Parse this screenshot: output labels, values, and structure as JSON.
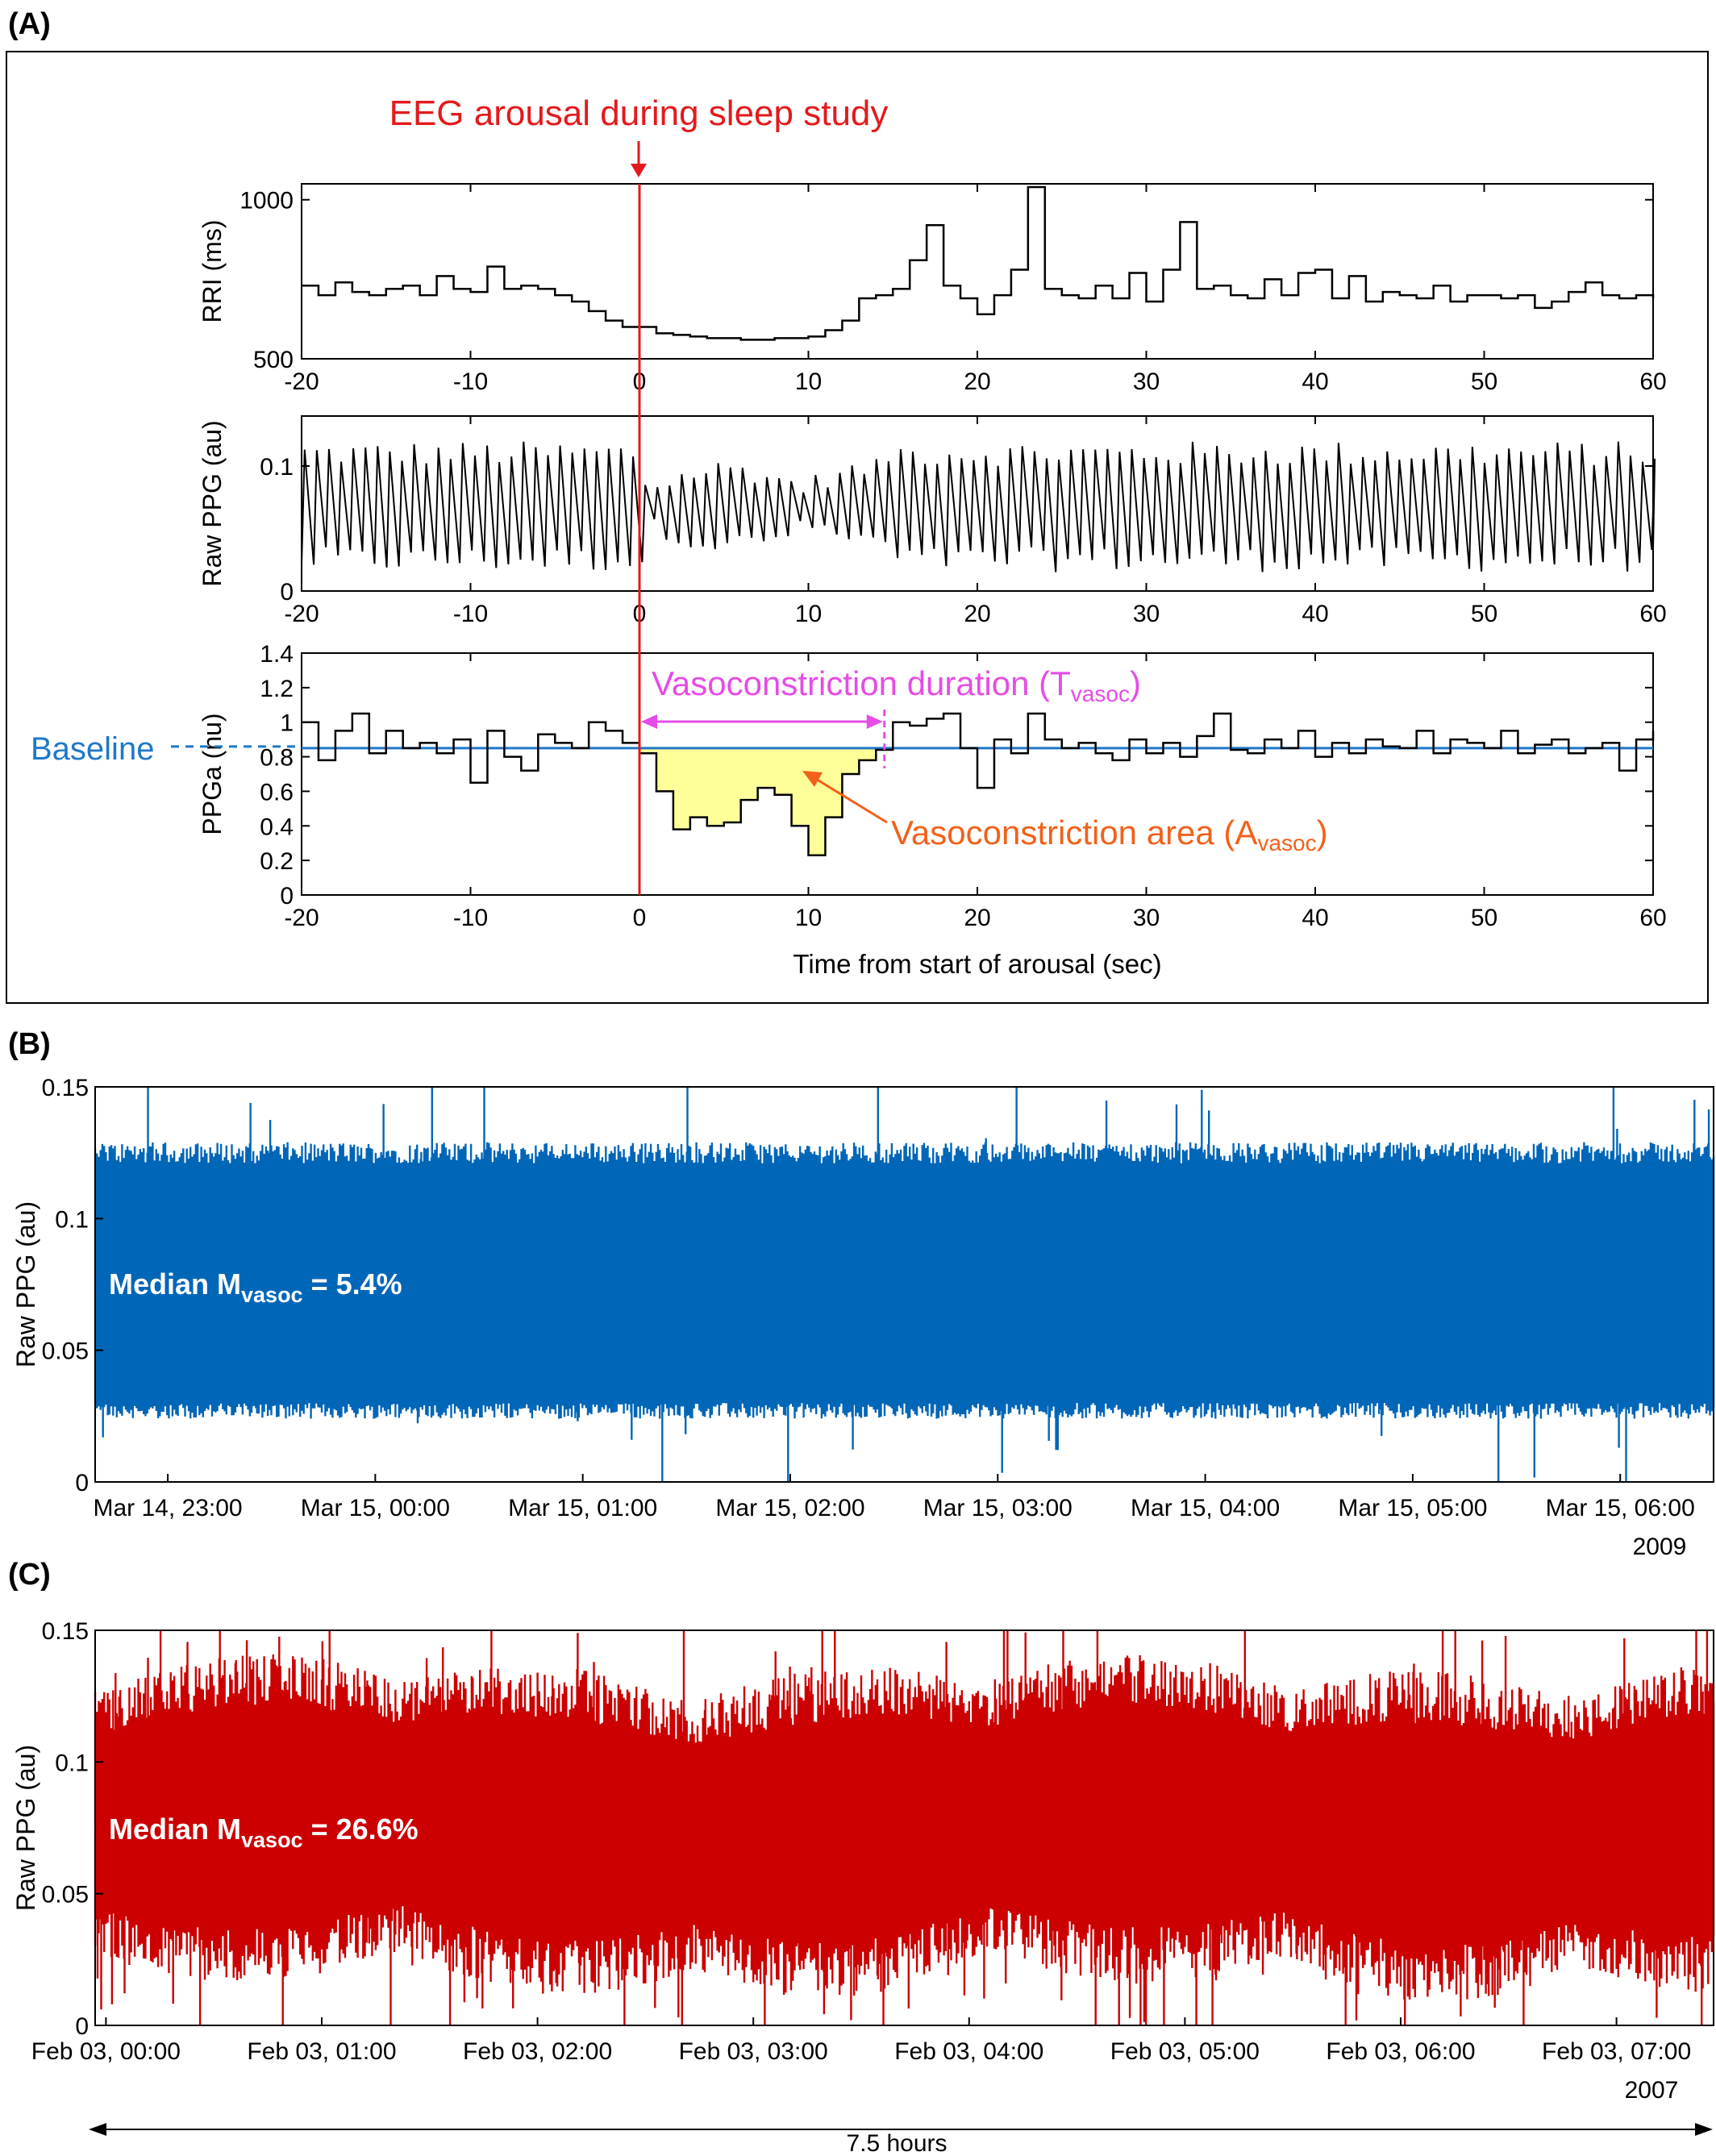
{
  "panels": {
    "a_label": "(A)",
    "b_label": "(B)",
    "c_label": "(C)"
  },
  "panel_a": {
    "event_annotation": "EEG arousal during sleep study",
    "baseline_label": "Baseline",
    "duration_annotation": "Vasoconstriction duration (T",
    "duration_sub": "vasoc",
    "duration_close": ")",
    "area_annotation": "Vasoconstriction area (A",
    "area_sub": "vasoc",
    "area_close": ")",
    "xlabel": "Time from start of arousal (sec)",
    "colors": {
      "event": "#e31a1c",
      "baseline": "#1f78c8",
      "duration": "#e64ce6",
      "area_text": "#f2611a",
      "fill": "#ffff99"
    }
  },
  "panel_b": {
    "median_prefix": "Median M",
    "median_sub": "vasoc",
    "median_suffix": " = 5.4%",
    "year": "2009",
    "color": "#0066b8"
  },
  "panel_c": {
    "median_prefix": "Median M",
    "median_sub": "vasoc",
    "median_suffix": " = 26.6%",
    "year": "2007",
    "color": "#cc0000"
  },
  "span_label": "7.5 hours",
  "chart_data": [
    {
      "id": "rri",
      "type": "line",
      "step": true,
      "ylabel": "RRI (ms)",
      "xlim": [
        -20,
        60
      ],
      "ylim": [
        500,
        1050
      ],
      "yticks": [
        500,
        1000
      ],
      "xticks": [
        -20,
        -10,
        0,
        10,
        20,
        30,
        40,
        50,
        60
      ],
      "vline_x": 0,
      "x": [
        -20,
        -19,
        -18,
        -17,
        -16,
        -15,
        -14,
        -13,
        -12,
        -11,
        -10,
        -9,
        -8,
        -7,
        -6,
        -5,
        -4,
        -3,
        -2,
        -1,
        0,
        1,
        2,
        3,
        4,
        5,
        6,
        7,
        8,
        9,
        10,
        11,
        12,
        13,
        14,
        15,
        16,
        17,
        18,
        19,
        20,
        21,
        22,
        23,
        24,
        25,
        26,
        27,
        28,
        29,
        30,
        31,
        32,
        33,
        34,
        35,
        36,
        37,
        38,
        39,
        40,
        41,
        42,
        43,
        44,
        45,
        46,
        47,
        48,
        49,
        50,
        51,
        52,
        53,
        54,
        55,
        56,
        57,
        58,
        59,
        60
      ],
      "y": [
        730,
        700,
        740,
        710,
        700,
        720,
        730,
        700,
        760,
        720,
        710,
        790,
        720,
        730,
        720,
        700,
        680,
        650,
        620,
        600,
        600,
        580,
        575,
        570,
        565,
        565,
        560,
        560,
        565,
        565,
        570,
        590,
        620,
        690,
        700,
        720,
        810,
        920,
        730,
        690,
        640,
        700,
        780,
        1040,
        720,
        700,
        690,
        730,
        690,
        770,
        680,
        780,
        930,
        720,
        730,
        700,
        690,
        750,
        700,
        770,
        780,
        690,
        760,
        680,
        710,
        700,
        690,
        730,
        680,
        700,
        700,
        690,
        700,
        660,
        680,
        710,
        740,
        700,
        690,
        700,
        690
      ]
    },
    {
      "id": "raw_ppg_a",
      "type": "line",
      "ylabel": "Raw PPG (au)",
      "xlim": [
        -20,
        60
      ],
      "ylim": [
        0,
        0.14
      ],
      "yticks": [
        0,
        0.1
      ],
      "xticks": [
        -20,
        -10,
        0,
        10,
        20,
        30,
        40,
        50,
        60
      ],
      "vline_x": 0,
      "y_upper_envelope": 0.11,
      "y_lower_envelope": 0.025,
      "beat_interval_sec": 0.72
    },
    {
      "id": "ppga",
      "type": "line",
      "step": true,
      "ylabel": "PPGa (nu)",
      "xlabel": "Time from start of arousal (sec)",
      "xlim": [
        -20,
        60
      ],
      "ylim": [
        0,
        1.4
      ],
      "yticks": [
        0,
        0.2,
        0.4,
        0.6,
        0.8,
        1,
        1.2,
        1.4
      ],
      "xticks": [
        -20,
        -10,
        0,
        10,
        20,
        30,
        40,
        50,
        60
      ],
      "vline_x": 0,
      "baseline": 0.85,
      "vasoc_end": 14.5,
      "x": [
        -20,
        -19,
        -18,
        -17,
        -16,
        -15,
        -14,
        -13,
        -12,
        -11,
        -10,
        -9,
        -8,
        -7,
        -6,
        -5,
        -4,
        -3,
        -2,
        -1,
        0,
        1,
        2,
        3,
        4,
        5,
        6,
        7,
        8,
        9,
        10,
        11,
        12,
        13,
        14,
        15,
        16,
        17,
        18,
        19,
        20,
        21,
        22,
        23,
        24,
        25,
        26,
        27,
        28,
        29,
        30,
        31,
        32,
        33,
        34,
        35,
        36,
        37,
        38,
        39,
        40,
        41,
        42,
        43,
        44,
        45,
        46,
        47,
        48,
        49,
        50,
        51,
        52,
        53,
        54,
        55,
        56,
        57,
        58,
        59,
        60
      ],
      "y": [
        1.0,
        0.78,
        0.95,
        1.05,
        0.82,
        0.95,
        0.85,
        0.88,
        0.82,
        0.9,
        0.65,
        0.95,
        0.8,
        0.72,
        0.93,
        0.88,
        0.85,
        1.0,
        0.95,
        0.88,
        0.82,
        0.6,
        0.38,
        0.45,
        0.4,
        0.42,
        0.55,
        0.62,
        0.58,
        0.4,
        0.23,
        0.45,
        0.7,
        0.78,
        0.84,
        1.0,
        0.98,
        1.02,
        1.05,
        0.85,
        0.62,
        0.9,
        0.82,
        1.05,
        0.9,
        0.85,
        0.88,
        0.82,
        0.78,
        0.9,
        0.82,
        0.88,
        0.8,
        0.92,
        1.05,
        0.84,
        0.82,
        0.9,
        0.85,
        0.95,
        0.8,
        0.88,
        0.82,
        0.9,
        0.86,
        0.85,
        0.95,
        0.82,
        0.9,
        0.88,
        0.85,
        0.95,
        0.82,
        0.87,
        0.9,
        0.82,
        0.85,
        0.88,
        0.72,
        0.9,
        0.95
      ]
    },
    {
      "id": "raw_ppg_b",
      "type": "line",
      "ylabel": "Raw PPG (au)",
      "ylim": [
        0,
        0.15
      ],
      "yticks": [
        0,
        0.05,
        0.1,
        0.15
      ],
      "x_tick_labels": [
        "Mar 14, 23:00",
        "Mar 15, 00:00",
        "Mar 15, 01:00",
        "Mar 15, 02:00",
        "Mar 15, 03:00",
        "Mar 15, 04:00",
        "Mar 15, 05:00",
        "Mar 15, 06:00"
      ],
      "xlim_hours": [
        -0.35,
        7.45
      ],
      "tick_hours": [
        0,
        1,
        2,
        3,
        4,
        5,
        6,
        7
      ],
      "envelope_upper": 0.125,
      "envelope_lower": 0.027
    },
    {
      "id": "raw_ppg_c",
      "type": "line",
      "ylabel": "Raw PPG (au)",
      "ylim": [
        0,
        0.15
      ],
      "yticks": [
        0,
        0.05,
        0.1,
        0.15
      ],
      "x_tick_labels": [
        "Feb 03, 00:00",
        "Feb 03, 01:00",
        "Feb 03, 02:00",
        "Feb 03, 03:00",
        "Feb 03, 04:00",
        "Feb 03, 05:00",
        "Feb 03, 06:00",
        "Feb 03, 07:00"
      ],
      "xlim_hours": [
        -0.05,
        7.45
      ],
      "tick_hours": [
        0,
        1,
        2,
        3,
        4,
        5,
        6,
        7
      ],
      "envelope_upper": 0.105,
      "envelope_lower": 0.045
    }
  ]
}
